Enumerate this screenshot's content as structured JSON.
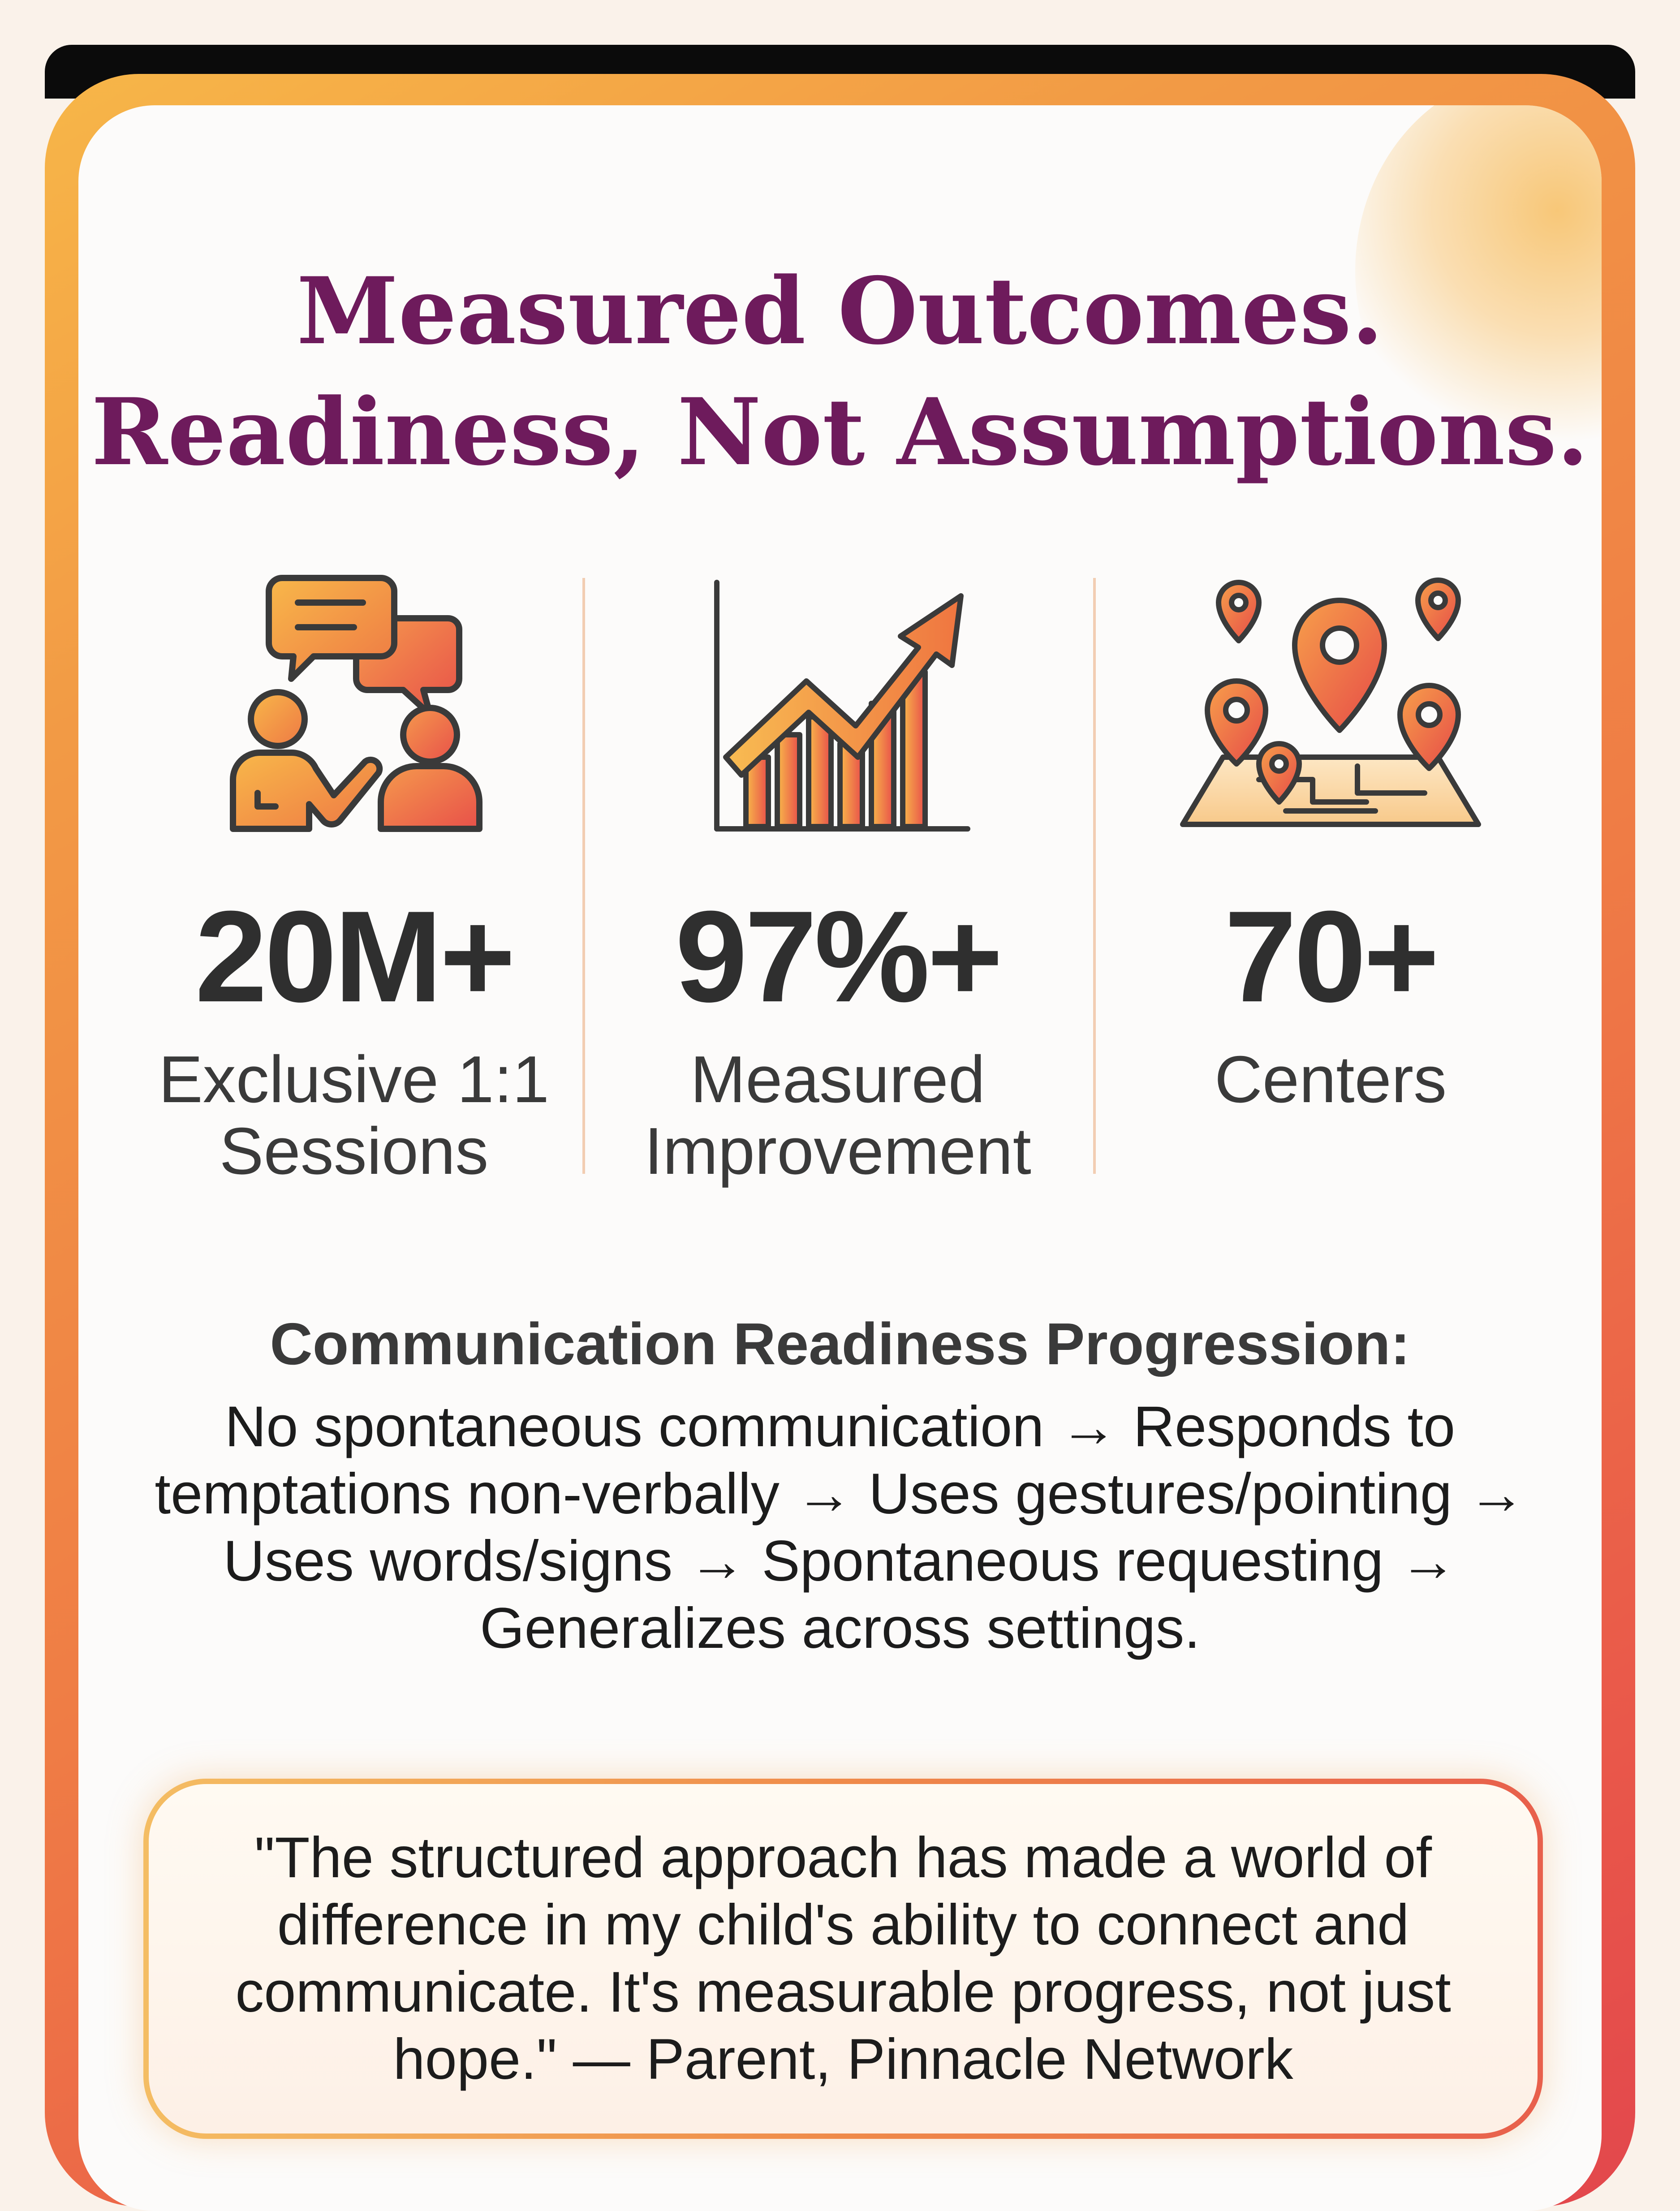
{
  "headline": {
    "line1": "Measured Outcomes.",
    "line2": "Readiness, Not Assumptions."
  },
  "stats": [
    {
      "icon": "conversation-icon",
      "value": "20M+",
      "label_line1": "Exclusive 1:1",
      "label_line2": "Sessions"
    },
    {
      "icon": "growth-chart-icon",
      "value": "97%+",
      "label_line1": "Measured",
      "label_line2": "Improvement"
    },
    {
      "icon": "map-pins-icon",
      "value": "70+",
      "label_line1": "Centers",
      "label_line2": ""
    }
  ],
  "progression": {
    "title": "Communication Readiness Progression:",
    "text": "No spontaneous communication → Responds to temptations non-verbally → Uses gestures/pointing → Uses words/signs → Spontaneous requesting → Generalizes across settings."
  },
  "testimonial": {
    "text": "\"The structured approach has made a world of difference in my child's ability to connect and communicate. It's measurable progress, not just hope.\" — Parent, Pinnacle Network"
  },
  "colors": {
    "headline": "#6e1b5c",
    "accent_orange": "#f29a45",
    "accent_red": "#e2474c",
    "accent_yellow": "#f7b648"
  }
}
